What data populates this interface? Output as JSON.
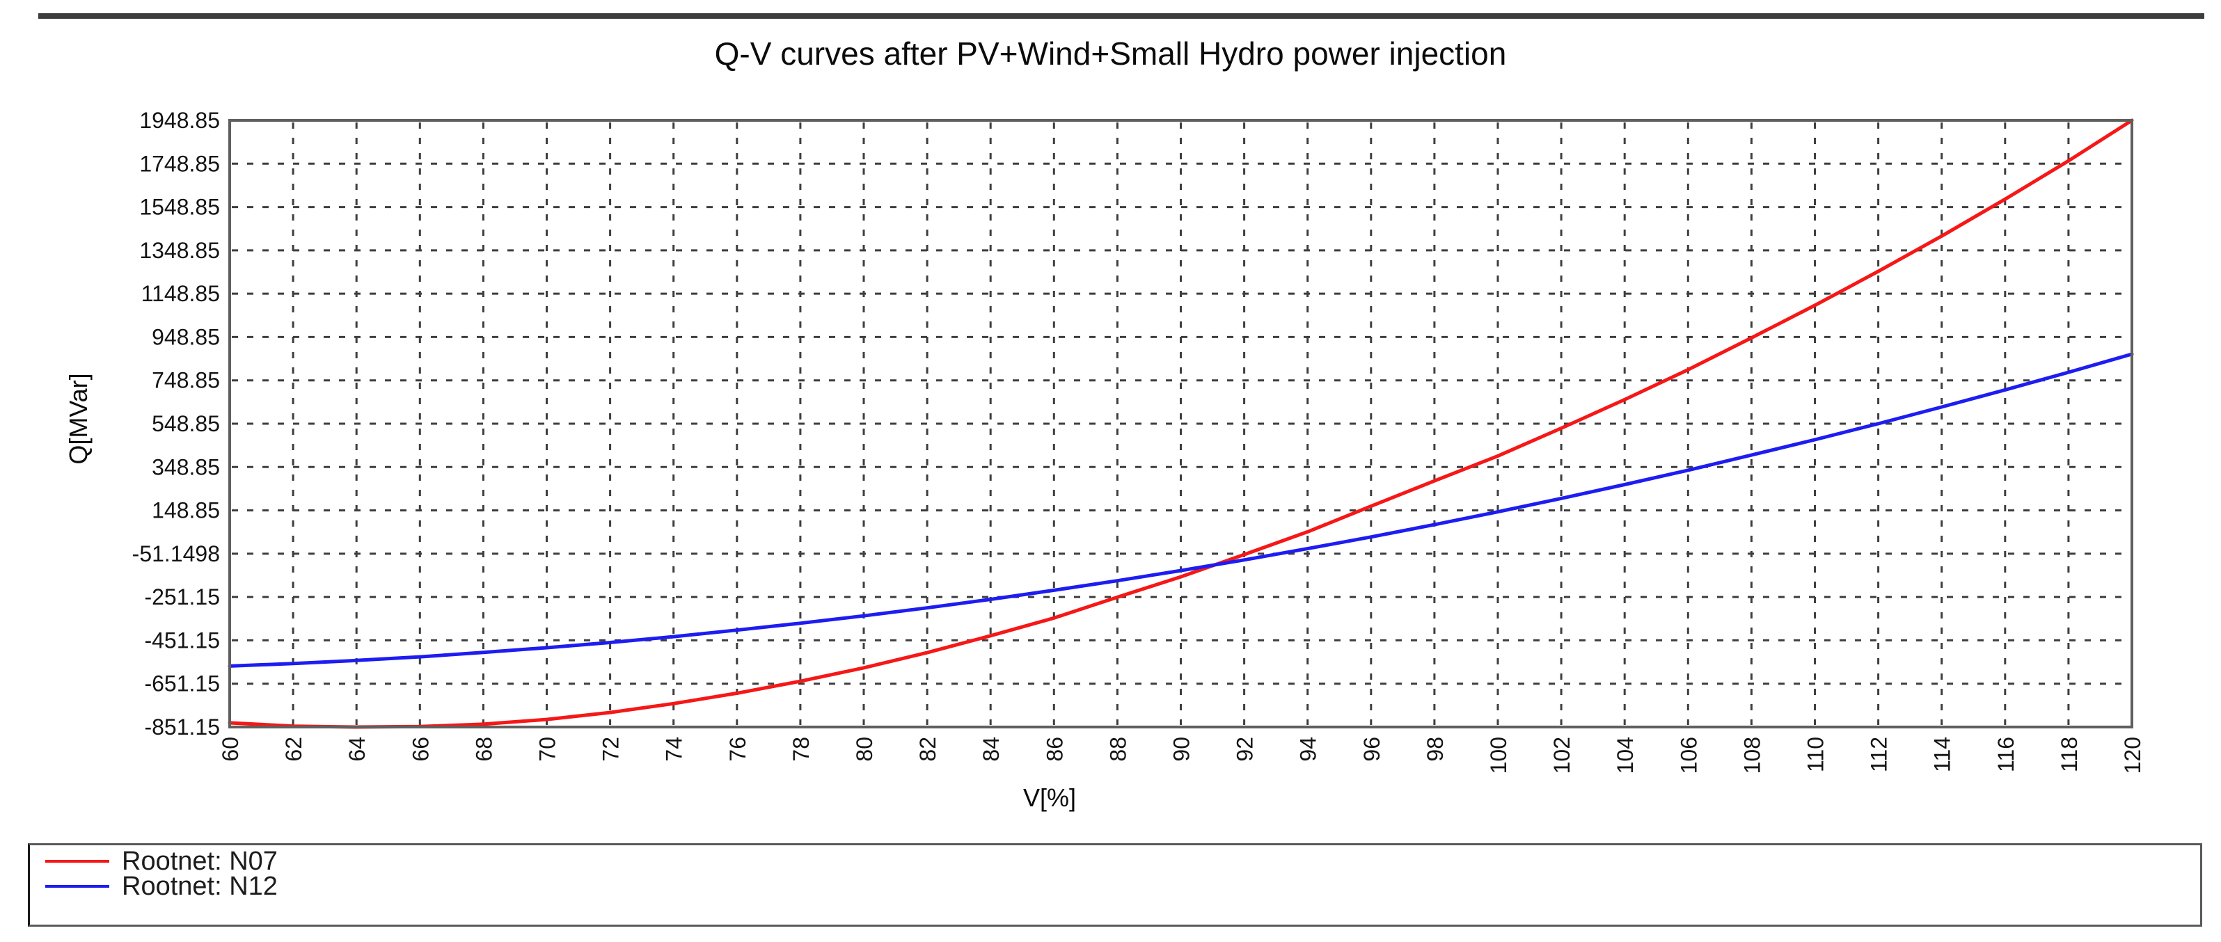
{
  "page": {
    "title": "Q-V curves after PV+Wind+Small Hydro power injection"
  },
  "chart_data": {
    "type": "line",
    "title": "Q-V curves after PV+Wind+Small Hydro power injection",
    "xlabel": "V[%]",
    "ylabel": "Q[MVar]",
    "xlim": [
      60,
      120
    ],
    "ylim": [
      -851.15,
      1948.85
    ],
    "grid": "dashed",
    "grid_color": "#3e3e3e",
    "axis_border_color": "#5f5f5f",
    "legend_position": "bottom-left-box",
    "x_ticks": [
      60,
      62,
      64,
      66,
      68,
      70,
      72,
      74,
      76,
      78,
      80,
      82,
      84,
      86,
      88,
      90,
      92,
      94,
      96,
      98,
      100,
      102,
      104,
      106,
      108,
      110,
      112,
      114,
      116,
      118,
      120
    ],
    "y_ticks": [
      {
        "v": 1948.85,
        "label": "1948.85"
      },
      {
        "v": 1748.85,
        "label": "1748.85"
      },
      {
        "v": 1548.85,
        "label": "1548.85"
      },
      {
        "v": 1348.85,
        "label": "1348.85"
      },
      {
        "v": 1148.85,
        "label": "1148.85"
      },
      {
        "v": 948.85,
        "label": "948.85"
      },
      {
        "v": 748.85,
        "label": "748.85"
      },
      {
        "v": 548.85,
        "label": "548.85"
      },
      {
        "v": 348.85,
        "label": "348.85"
      },
      {
        "v": 148.85,
        "label": "148.85"
      },
      {
        "v": -51.1498,
        "label": "-51.1498"
      },
      {
        "v": -251.15,
        "label": "-251.15"
      },
      {
        "v": -451.15,
        "label": "-451.15"
      },
      {
        "v": -651.15,
        "label": "-651.15"
      },
      {
        "v": -851.15,
        "label": "-851.15"
      }
    ],
    "series": [
      {
        "name": "Rootnet: N07",
        "color": "#f61717",
        "x": [
          60,
          62,
          64,
          66,
          68,
          70,
          72,
          74,
          76,
          78,
          80,
          82,
          84,
          86,
          88,
          90,
          92,
          94,
          96,
          98,
          100,
          102,
          104,
          106,
          108,
          110,
          112,
          114,
          116,
          118,
          120
        ],
        "y": [
          -832,
          -847,
          -851,
          -849,
          -838,
          -816,
          -784,
          -743,
          -695,
          -640,
          -578,
          -508,
          -430,
          -348,
          -252,
          -158,
          -55,
          50,
          168,
          285,
          400,
          528,
          660,
          798,
          945,
          1095,
          1252,
          1415,
          1585,
          1762,
          1948.85
        ]
      },
      {
        "name": "Rootnet: N12",
        "color": "#1d1df2",
        "x": [
          60,
          62,
          64,
          66,
          68,
          70,
          72,
          74,
          76,
          78,
          80,
          82,
          84,
          86,
          88,
          90,
          92,
          94,
          96,
          98,
          100,
          102,
          104,
          106,
          108,
          110,
          112,
          114,
          116,
          118,
          120
        ],
        "y": [
          -570,
          -558,
          -544,
          -527,
          -507,
          -485,
          -461,
          -434,
          -404,
          -372,
          -338,
          -301,
          -262,
          -220,
          -176,
          -129,
          -80,
          -28,
          26,
          83,
          142,
          204,
          268,
          334,
          404,
          475,
          549,
          626,
          705,
          786,
          870
        ]
      }
    ]
  }
}
